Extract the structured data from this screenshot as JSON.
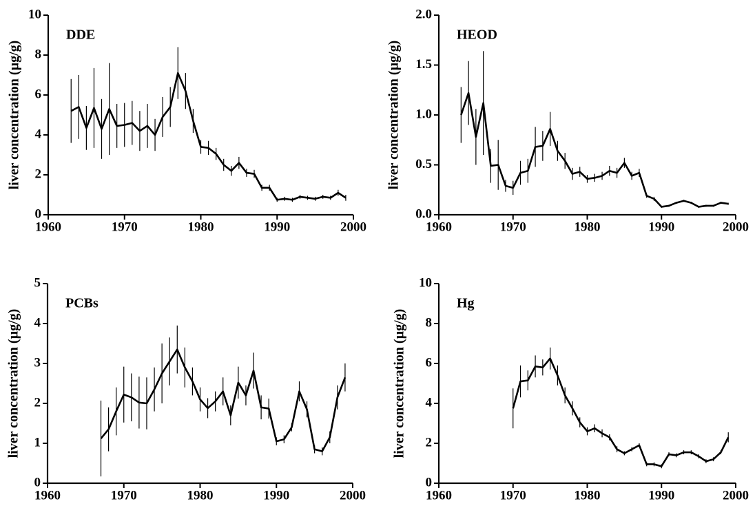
{
  "chart_data": [
    {
      "type": "line",
      "title": "DDE",
      "ylabel": "liver concentration (µg/g)",
      "color": "#000000",
      "x": [
        1963,
        1964,
        1965,
        1966,
        1967,
        1968,
        1969,
        1970,
        1971,
        1972,
        1973,
        1974,
        1975,
        1976,
        1977,
        1978,
        1979,
        1980,
        1981,
        1982,
        1983,
        1984,
        1985,
        1986,
        1987,
        1988,
        1989,
        1990,
        1991,
        1992,
        1993,
        1994,
        1995,
        1996,
        1997,
        1998,
        1999
      ],
      "values": [
        5.2,
        5.4,
        4.35,
        5.35,
        4.3,
        5.3,
        4.45,
        4.5,
        4.6,
        4.2,
        4.45,
        4.0,
        4.9,
        5.4,
        7.1,
        6.2,
        4.7,
        3.4,
        3.35,
        3.05,
        2.5,
        2.2,
        2.6,
        2.1,
        2.05,
        1.35,
        1.35,
        0.75,
        0.8,
        0.75,
        0.9,
        0.85,
        0.8,
        0.9,
        0.85,
        1.1,
        0.85
      ],
      "errors": [
        1.6,
        1.6,
        1.1,
        2.0,
        1.5,
        2.3,
        1.1,
        1.1,
        1.1,
        1.0,
        1.1,
        0.8,
        1.0,
        1.0,
        1.3,
        0.9,
        0.6,
        0.35,
        0.35,
        0.3,
        0.3,
        0.25,
        0.3,
        0.2,
        0.2,
        0.15,
        0.15,
        0.1,
        0.1,
        0.1,
        0.1,
        0.1,
        0.1,
        0.1,
        0.1,
        0.15,
        0.15
      ],
      "xlim": [
        1960,
        2000
      ],
      "xticks": [
        1960,
        1970,
        1980,
        1990,
        2000
      ],
      "ylim": [
        0,
        10
      ],
      "yticks": [
        0,
        2,
        4,
        6,
        8,
        10
      ]
    },
    {
      "type": "line",
      "title": "HEOD",
      "ylabel": "liver concentration (µg/g)",
      "color": "#000000",
      "x": [
        1963,
        1964,
        1965,
        1966,
        1967,
        1968,
        1969,
        1970,
        1971,
        1972,
        1973,
        1974,
        1975,
        1976,
        1977,
        1978,
        1979,
        1980,
        1981,
        1982,
        1983,
        1984,
        1985,
        1986,
        1987,
        1988,
        1989,
        1990,
        1991,
        1992,
        1993,
        1994,
        1995,
        1996,
        1997,
        1998,
        1999
      ],
      "values": [
        1.0,
        1.22,
        0.78,
        1.12,
        0.49,
        0.5,
        0.29,
        0.27,
        0.42,
        0.44,
        0.68,
        0.69,
        0.86,
        0.64,
        0.54,
        0.41,
        0.43,
        0.36,
        0.37,
        0.39,
        0.44,
        0.42,
        0.52,
        0.39,
        0.42,
        0.19,
        0.16,
        0.08,
        0.09,
        0.12,
        0.14,
        0.12,
        0.08,
        0.09,
        0.09,
        0.12,
        0.11
      ],
      "errors": [
        0.28,
        0.32,
        0.28,
        0.52,
        0.17,
        0.25,
        0.06,
        0.07,
        0.12,
        0.12,
        0.2,
        0.15,
        0.17,
        0.1,
        0.08,
        0.06,
        0.05,
        0.04,
        0.04,
        0.04,
        0.05,
        0.05,
        0.05,
        0.04,
        0.04,
        0.02,
        0.02,
        0.01,
        0.01,
        0.01,
        0.01,
        0.01,
        0.01,
        0.01,
        0.01,
        0.01,
        0.01
      ],
      "xlim": [
        1960,
        2000
      ],
      "xticks": [
        1960,
        1970,
        1980,
        1990,
        2000
      ],
      "ylim": [
        0,
        2
      ],
      "yticks": [
        {
          "value": 0,
          "label": "0.0"
        },
        0.5,
        {
          "value": 1,
          "label": "1.0"
        },
        1.5,
        {
          "value": 2,
          "label": "2.0"
        }
      ]
    },
    {
      "type": "line",
      "title": "PCBs",
      "ylabel": "liver concentration (µg/g)",
      "color": "#000000",
      "x": [
        1967,
        1968,
        1969,
        1970,
        1971,
        1972,
        1973,
        1974,
        1975,
        1976,
        1977,
        1978,
        1979,
        1980,
        1981,
        1982,
        1983,
        1984,
        1985,
        1986,
        1987,
        1988,
        1989,
        1990,
        1991,
        1992,
        1993,
        1994,
        1995,
        1996,
        1997,
        1998,
        1999
      ],
      "values": [
        1.12,
        1.35,
        1.8,
        2.22,
        2.15,
        2.02,
        2.0,
        2.35,
        2.75,
        3.05,
        3.35,
        2.9,
        2.55,
        2.1,
        1.88,
        2.05,
        2.3,
        1.7,
        2.52,
        2.2,
        2.82,
        1.9,
        1.87,
        1.05,
        1.1,
        1.4,
        2.3,
        1.85,
        0.85,
        0.8,
        1.15,
        2.15,
        2.65
      ],
      "errors": [
        0.95,
        0.55,
        0.6,
        0.7,
        0.6,
        0.65,
        0.65,
        0.55,
        0.75,
        0.6,
        0.6,
        0.5,
        0.35,
        0.3,
        0.25,
        0.25,
        0.35,
        0.25,
        0.4,
        0.25,
        0.45,
        0.3,
        0.25,
        0.1,
        0.1,
        0.1,
        0.25,
        0.2,
        0.1,
        0.1,
        0.15,
        0.3,
        0.35
      ],
      "xlim": [
        1960,
        2000
      ],
      "xticks": [
        1960,
        1970,
        1980,
        1990,
        2000
      ],
      "ylim": [
        0,
        5
      ],
      "yticks": [
        0,
        1,
        2,
        3,
        4,
        5
      ]
    },
    {
      "type": "line",
      "title": "Hg",
      "ylabel": "liver concentration (µg/g)",
      "color": "#000000",
      "x": [
        1970,
        1971,
        1972,
        1973,
        1974,
        1975,
        1976,
        1977,
        1978,
        1979,
        1980,
        1981,
        1982,
        1983,
        1984,
        1985,
        1986,
        1987,
        1988,
        1989,
        1990,
        1991,
        1992,
        1993,
        1994,
        1995,
        1996,
        1997,
        1998,
        1999
      ],
      "values": [
        3.75,
        5.1,
        5.15,
        5.85,
        5.8,
        6.25,
        5.4,
        4.4,
        3.75,
        3.05,
        2.6,
        2.75,
        2.5,
        2.3,
        1.7,
        1.5,
        1.7,
        1.9,
        0.95,
        0.95,
        0.85,
        1.45,
        1.4,
        1.55,
        1.55,
        1.35,
        1.1,
        1.2,
        1.55,
        2.3
      ],
      "errors": [
        1.0,
        0.8,
        0.5,
        0.55,
        0.4,
        0.55,
        0.5,
        0.4,
        0.35,
        0.25,
        0.2,
        0.2,
        0.2,
        0.15,
        0.15,
        0.1,
        0.1,
        0.1,
        0.1,
        0.1,
        0.1,
        0.1,
        0.1,
        0.1,
        0.1,
        0.1,
        0.1,
        0.1,
        0.1,
        0.25
      ],
      "xlim": [
        1960,
        2000
      ],
      "xticks": [
        1960,
        1970,
        1980,
        1990,
        2000
      ],
      "ylim": [
        0,
        10
      ],
      "yticks": [
        0,
        2,
        4,
        6,
        8,
        10
      ]
    }
  ]
}
